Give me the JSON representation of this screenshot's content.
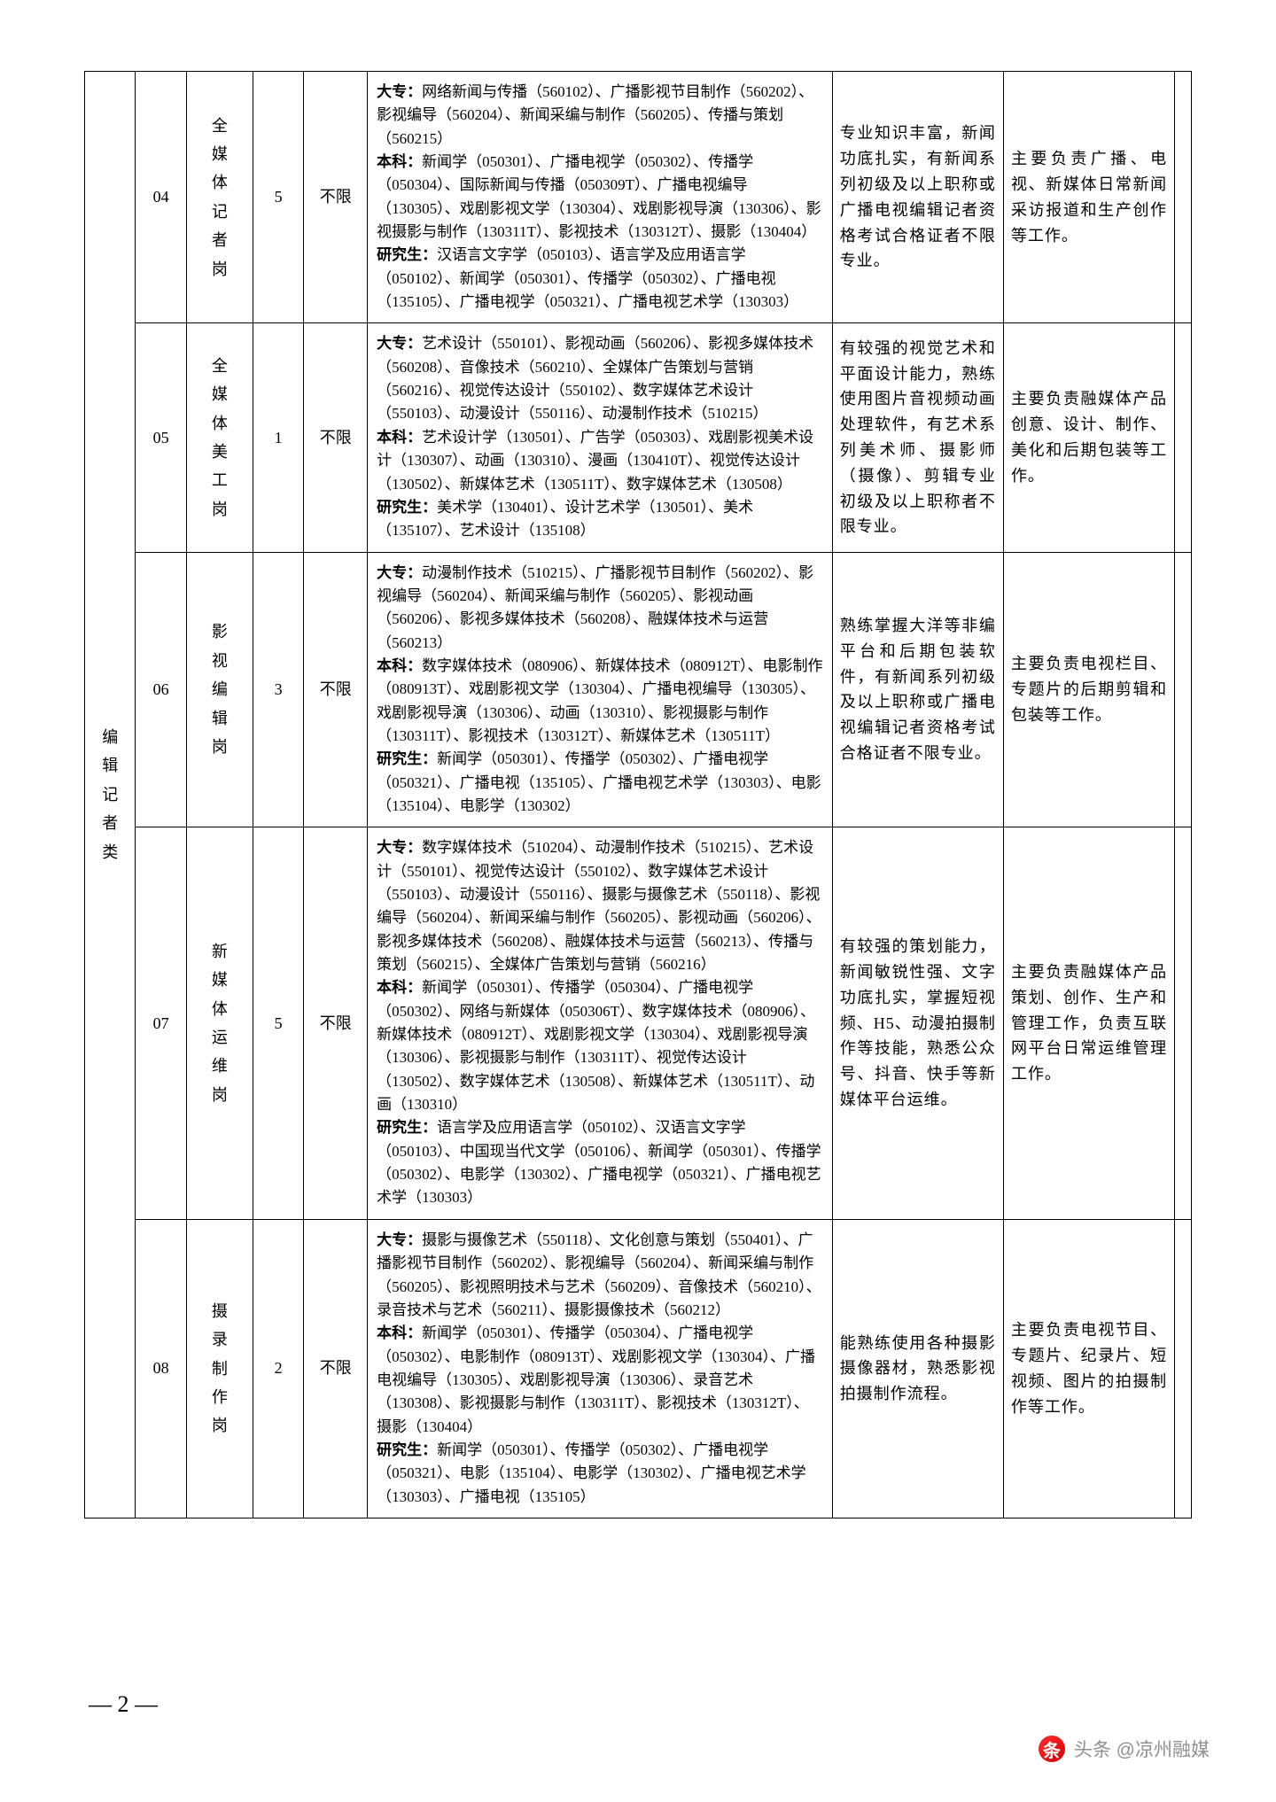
{
  "category": "编辑记者类",
  "rows": [
    {
      "num": "04",
      "position": "全媒体记者岗",
      "count": "5",
      "limit": "不限",
      "requirements": "<b>大专：</b>网络新闻与传播（560102）、广播影视节目制作（560202）、影视编导（560204）、新闻采编与制作（560205）、传播与策划（560215）<br><b>本科：</b>新闻学（050301）、广播电视学（050302）、传播学（050304）、国际新闻与传播（050309T）、广播电视编导（130305）、戏剧影视文学（130304）、戏剧影视导演（130306）、影视摄影与制作（130311T）、影视技术（130312T）、摄影（130404）<br><b>研究生：</b>汉语言文字学（050103）、语言学及应用语言学（050102）、新闻学（050301）、传播学（050302）、广播电视（135105）、广播电视学（050321）、广播电视艺术学（130303）",
      "qualification": "专业知识丰富，新闻功底扎实，有新闻系列初级及以上职称或广播电视编辑记者资格考试合格证者不限专业。",
      "duty": "主要负责广播、电视、新媒体日常新闻采访报道和生产创作等工作。"
    },
    {
      "num": "05",
      "position": "全媒体美工岗",
      "count": "1",
      "limit": "不限",
      "requirements": "<b>大专：</b>艺术设计（550101）、影视动画（560206）、影视多媒体技术（560208）、音像技术（560210）、全媒体广告策划与营销（560216）、视觉传达设计（550102）、数字媒体艺术设计（550103）、动漫设计（550116）、动漫制作技术（510215）<br><b>本科：</b>艺术设计学（130501）、广告学（050303）、戏剧影视美术设计（130307）、动画（130310）、漫画（130410T）、视觉传达设计（130502）、新媒体艺术（130511T）、数字媒体艺术（130508）<br><b>研究生：</b>美术学（130401）、设计艺术学（130501）、美术（135107）、艺术设计（135108）",
      "qualification": "有较强的视觉艺术和平面设计能力，熟练使用图片音视频动画处理软件，有艺术系列美术师、摄影师（摄像）、剪辑专业初级及以上职称者不限专业。",
      "duty": "主要负责融媒体产品创意、设计、制作、美化和后期包装等工作。"
    },
    {
      "num": "06",
      "position": "影视编辑岗",
      "count": "3",
      "limit": "不限",
      "requirements": "<b>大专：</b>动漫制作技术（510215）、广播影视节目制作（560202）、影视编导（560204）、新闻采编与制作（560205）、影视动画（560206）、影视多媒体技术（560208）、融媒体技术与运营（560213）<br><b>本科：</b>数字媒体技术（080906）、新媒体技术（080912T）、电影制作（080913T）、戏剧影视文学（130304）、广播电视编导（130305）、戏剧影视导演（130306）、动画（130310）、影视摄影与制作（130311T）、影视技术（130312T）、新媒体艺术（130511T）<br><b>研究生：</b>新闻学（050301）、传播学（050302）、广播电视学（050321）、广播电视（135105）、广播电视艺术学（130303）、电影（135104）、电影学（130302）",
      "qualification": "熟练掌握大洋等非编平台和后期包装软件，有新闻系列初级及以上职称或广播电视编辑记者资格考试合格证者不限专业。",
      "duty": "主要负责电视栏目、专题片的后期剪辑和包装等工作。"
    },
    {
      "num": "07",
      "position": "新媒体运维岗",
      "count": "5",
      "limit": "不限",
      "requirements": "<b>大专：</b>数字媒体技术（510204）、动漫制作技术（510215）、艺术设计（550101）、视觉传达设计（550102）、数字媒体艺术设计（550103）、动漫设计（550116）、摄影与摄像艺术（550118）、影视编导（560204）、新闻采编与制作（560205）、影视动画（560206）、影视多媒体技术（560208）、融媒体技术与运营（560213）、传播与策划（560215）、全媒体广告策划与营销（560216）<br><b>本科：</b>新闻学（050301）、传播学（050304）、广播电视学（050302）、网络与新媒体（050306T）、数字媒体技术（080906）、新媒体技术（080912T）、戏剧影视文学（130304）、戏剧影视导演（130306）、影视摄影与制作（130311T）、视觉传达设计（130502）、数字媒体艺术（130508）、新媒体艺术（130511T）、动画（130310）<br><b>研究生：</b>语言学及应用语言学（050102）、汉语言文字学（050103）、中国现当代文学（050106）、新闻学（050301）、传播学（050302）、电影学（130302）、广播电视学（050321）、广播电视艺术学（130303）",
      "qualification": "有较强的策划能力，新闻敏锐性强、文字功底扎实，掌握短视频、H5、动漫拍摄制作等技能，熟悉公众号、抖音、快手等新媒体平台运维。",
      "duty": "主要负责融媒体产品策划、创作、生产和管理工作，负责互联网平台日常运维管理工作。"
    },
    {
      "num": "08",
      "position": "摄录制作岗",
      "count": "2",
      "limit": "不限",
      "requirements": "<b>大专：</b>摄影与摄像艺术（550118）、文化创意与策划（550401）、广播影视节目制作（560202）、影视编导（560204）、新闻采编与制作（560205）、影视照明技术与艺术（560209）、音像技术（560210）、录音技术与艺术（560211）、摄影摄像技术（560212）<br><b>本科：</b>新闻学（050301）、传播学（050304）、广播电视学（050302）、电影制作（080913T）、戏剧影视文学（130304）、广播电视编导（130305）、戏剧影视导演（130306）、录音艺术（130308）、影视摄影与制作（130311T）、影视技术（130312T）、摄影（130404）<br><b>研究生：</b>新闻学（050301）、传播学（050302）、广播电视学（050321）、电影（135104）、电影学（130302）、广播电视艺术学（130303）、广播电视（135105）",
      "qualification": "能熟练使用各种摄影摄像器材，熟悉影视拍摄制作流程。",
      "duty": "主要负责电视节目、专题片、纪录片、短视频、图片的拍摄制作等工作。"
    }
  ],
  "pageNumber": "— 2 —",
  "watermark": {
    "icon": "条",
    "text": "头条 @凉州融媒"
  }
}
